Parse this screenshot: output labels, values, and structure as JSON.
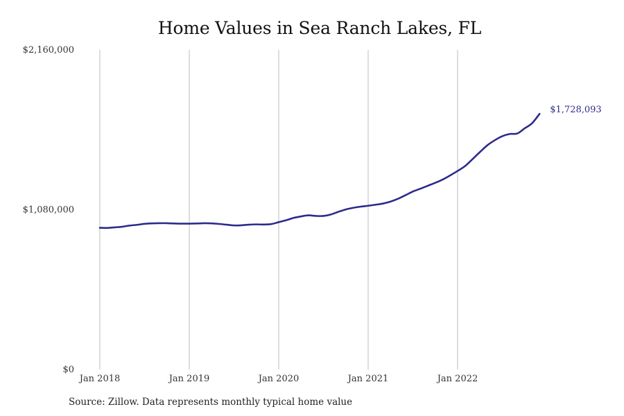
{
  "colors": {
    "line": "#2e2a8a",
    "grid": "#bdbdbd",
    "text": "#333333"
  },
  "source_note": "Source: Zillow. Data represents monthly typical home value",
  "chart_data": {
    "type": "line",
    "title": "Home Values in Sea Ranch Lakes, FL",
    "xlabel": "",
    "ylabel": "",
    "grid": {
      "x": true,
      "y": false
    },
    "ylim": [
      0,
      2160000
    ],
    "yticks": [
      {
        "value": 0,
        "label": "$0"
      },
      {
        "value": 1080000,
        "label": "$1,080,000"
      },
      {
        "value": 2160000,
        "label": "$2,160,000"
      }
    ],
    "xticks": [
      {
        "value": "2018-01",
        "label": "Jan 2018"
      },
      {
        "value": "2019-01",
        "label": "Jan 2019"
      },
      {
        "value": "2020-01",
        "label": "Jan 2020"
      },
      {
        "value": "2021-01",
        "label": "Jan 2021"
      },
      {
        "value": "2022-01",
        "label": "Jan 2022"
      }
    ],
    "end_label": "$1,728,093",
    "series": [
      {
        "color": "#2e2a8a",
        "x": [
          "2018-01",
          "2018-02",
          "2018-03",
          "2018-04",
          "2018-05",
          "2018-06",
          "2018-07",
          "2018-08",
          "2018-09",
          "2018-10",
          "2018-11",
          "2018-12",
          "2019-01",
          "2019-02",
          "2019-03",
          "2019-04",
          "2019-05",
          "2019-06",
          "2019-07",
          "2019-08",
          "2019-09",
          "2019-10",
          "2019-11",
          "2019-12",
          "2020-01",
          "2020-02",
          "2020-03",
          "2020-04",
          "2020-05",
          "2020-06",
          "2020-07",
          "2020-08",
          "2020-09",
          "2020-10",
          "2020-11",
          "2020-12",
          "2021-01",
          "2021-02",
          "2021-03",
          "2021-04",
          "2021-05",
          "2021-06",
          "2021-07",
          "2021-08",
          "2021-09",
          "2021-10",
          "2021-11",
          "2021-12",
          "2022-01",
          "2022-02",
          "2022-03",
          "2022-04",
          "2022-05",
          "2022-06",
          "2022-07",
          "2022-08",
          "2022-09",
          "2022-10",
          "2022-11",
          "2022-12"
        ],
        "values": [
          958000,
          957000,
          961000,
          965000,
          973000,
          978000,
          985000,
          988000,
          989000,
          989000,
          987000,
          986000,
          986000,
          987000,
          989000,
          988000,
          984000,
          979000,
          974000,
          975000,
          979000,
          981000,
          980000,
          983000,
          996000,
          1009000,
          1025000,
          1035000,
          1042000,
          1038000,
          1038000,
          1048000,
          1066000,
          1082000,
          1093000,
          1101000,
          1107000,
          1114000,
          1122000,
          1135000,
          1154000,
          1178000,
          1203000,
          1222000,
          1242000,
          1262000,
          1284000,
          1312000,
          1342000,
          1375000,
          1422000,
          1470000,
          1516000,
          1550000,
          1577000,
          1592000,
          1595000,
          1630000,
          1665000,
          1728093
        ]
      }
    ]
  }
}
